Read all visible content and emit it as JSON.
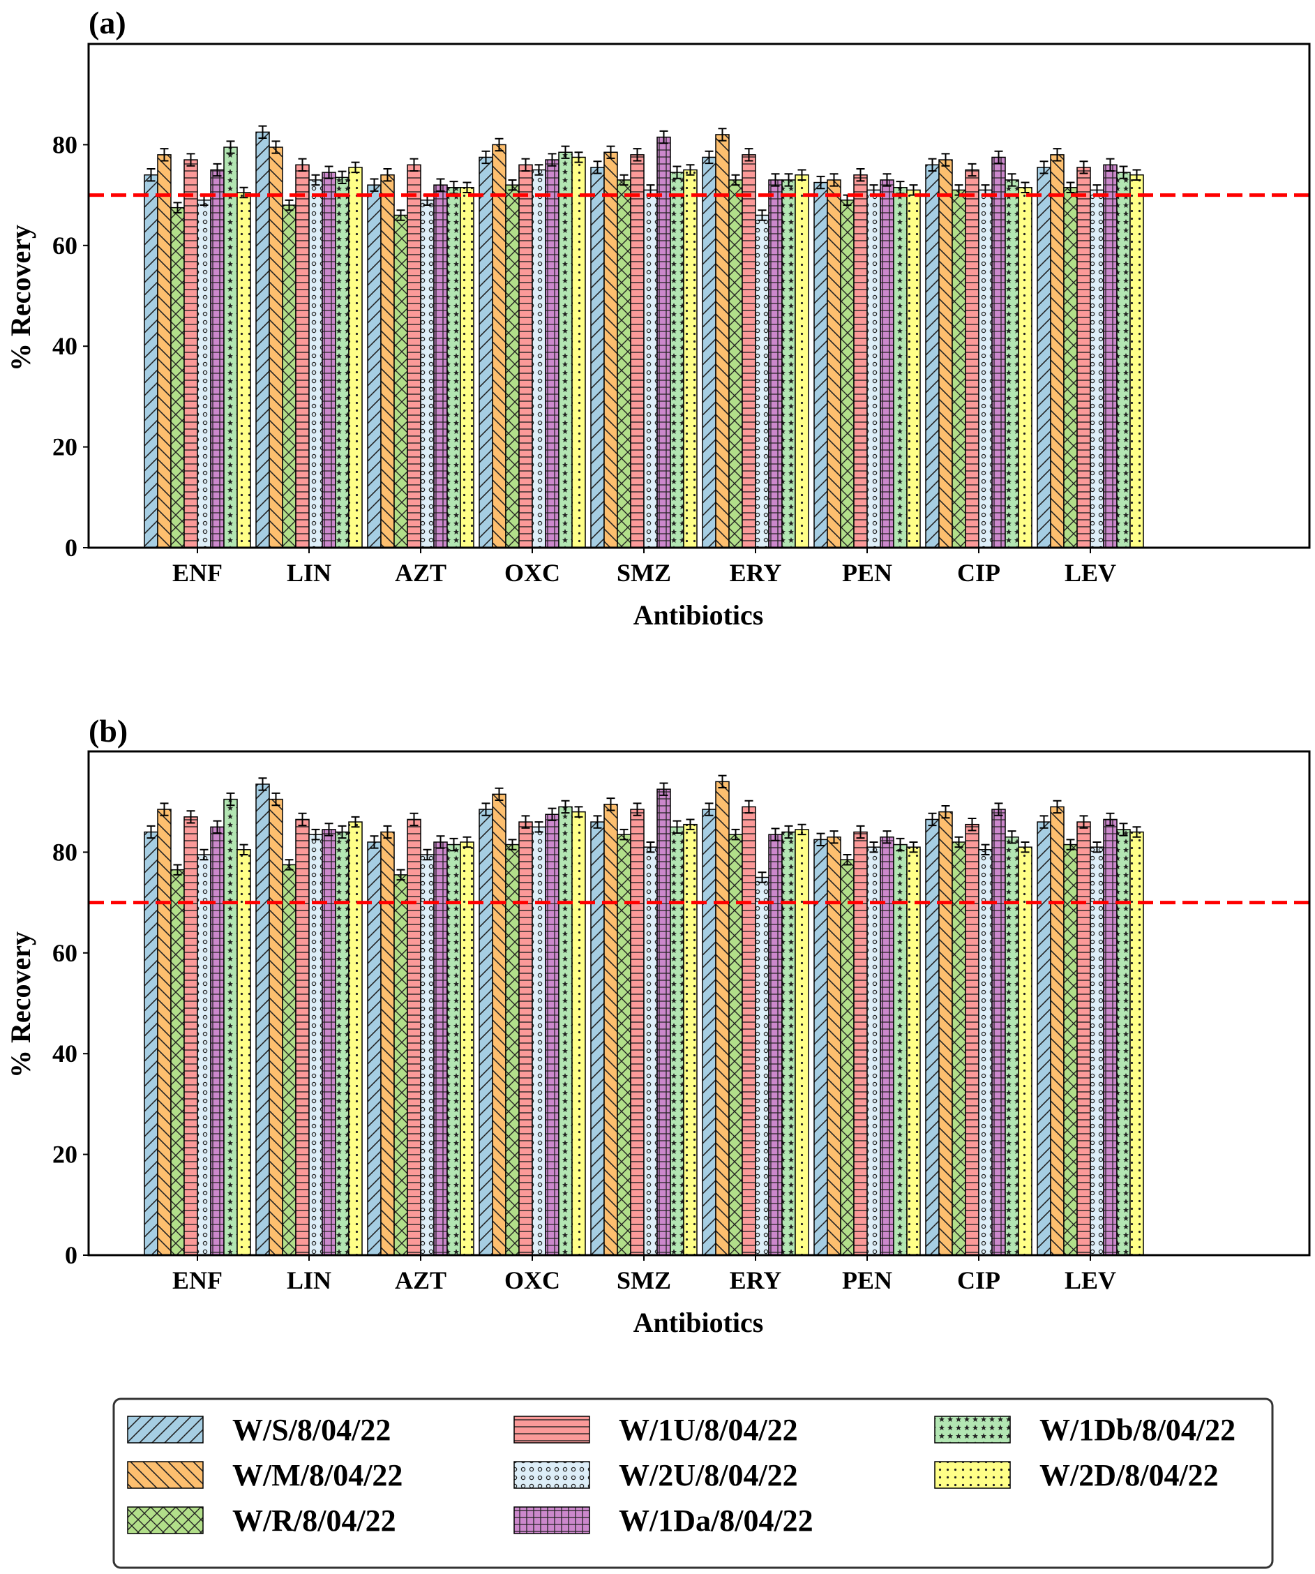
{
  "chart_data": [
    {
      "type": "bar",
      "panel_label": "(a)",
      "xlabel": "Antibiotics",
      "ylabel": "% Recovery",
      "ylim": [
        0,
        100
      ],
      "yticks": [
        0,
        20,
        40,
        60,
        80
      ],
      "grid": false,
      "reference_line": {
        "y": 70,
        "color": "#ff0000",
        "style": "dashed"
      },
      "categories": [
        "ENF",
        "LIN",
        "AZT",
        "OXC",
        "SMZ",
        "ERY",
        "PEN",
        "CIP",
        "LEV"
      ],
      "series": [
        {
          "name": "W/S/8/04/22",
          "values": [
            74,
            82.5,
            72,
            77.5,
            75.5,
            77.5,
            72.5,
            76,
            75.5
          ],
          "errors": [
            1.2,
            1.2,
            1.2,
            1.2,
            1.2,
            1.2,
            1.2,
            1.2,
            1.2
          ]
        },
        {
          "name": "W/M/8/04/22",
          "values": [
            78,
            79.5,
            74,
            80,
            78.5,
            82,
            73,
            77,
            78
          ],
          "errors": [
            1.2,
            1.2,
            1.2,
            1.2,
            1.2,
            1.2,
            1.2,
            1.2,
            1.2
          ]
        },
        {
          "name": "W/R/8/04/22",
          "values": [
            67.5,
            68,
            66,
            72,
            73,
            73,
            69,
            71,
            71.5
          ],
          "errors": [
            1,
            1,
            1,
            1,
            1,
            1,
            1,
            1,
            1
          ]
        },
        {
          "name": "W/1U/8/04/22",
          "values": [
            77,
            76,
            76,
            76,
            78,
            78,
            74,
            75,
            75.5
          ],
          "errors": [
            1.2,
            1.2,
            1.2,
            1.2,
            1.2,
            1.2,
            1.2,
            1.2,
            1.2
          ]
        },
        {
          "name": "W/2U/8/04/22",
          "values": [
            69,
            73,
            69,
            75,
            71,
            66,
            71,
            71,
            71
          ],
          "errors": [
            1,
            1,
            1,
            1,
            1,
            1,
            1,
            1,
            1
          ]
        },
        {
          "name": "W/1Da/8/04/22",
          "values": [
            75,
            74.5,
            72,
            77,
            81.5,
            73,
            73,
            77.5,
            76
          ],
          "errors": [
            1.2,
            1.2,
            1.2,
            1.2,
            1.2,
            1.2,
            1.2,
            1.2,
            1.2
          ]
        },
        {
          "name": "W/1Db/8/04/22",
          "values": [
            79.5,
            73.5,
            71.5,
            78.5,
            74.5,
            73,
            71.5,
            73,
            74.5
          ],
          "errors": [
            1.2,
            1.2,
            1.2,
            1.2,
            1.2,
            1.2,
            1.2,
            1.2,
            1.2
          ]
        },
        {
          "name": "W/2D/8/04/22",
          "values": [
            70.5,
            75.5,
            71.5,
            77.5,
            75,
            74,
            71,
            71.5,
            74
          ],
          "errors": [
            1,
            1,
            1,
            1,
            1,
            1,
            1,
            1,
            1
          ]
        }
      ]
    },
    {
      "type": "bar",
      "panel_label": "(b)",
      "xlabel": "Antibiotics",
      "ylabel": "% Recovery",
      "ylim": [
        0,
        100
      ],
      "yticks": [
        0,
        20,
        40,
        60,
        80
      ],
      "grid": false,
      "reference_line": {
        "y": 70,
        "color": "#ff0000",
        "style": "dashed"
      },
      "categories": [
        "ENF",
        "LIN",
        "AZT",
        "OXC",
        "SMZ",
        "ERY",
        "PEN",
        "CIP",
        "LEV"
      ],
      "series": [
        {
          "name": "W/S/8/04/22",
          "values": [
            84,
            93.5,
            82,
            88.5,
            86,
            88.5,
            82.5,
            86.5,
            86
          ],
          "errors": [
            1.2,
            1.2,
            1.2,
            1.2,
            1.2,
            1.2,
            1.2,
            1.2,
            1.2
          ]
        },
        {
          "name": "W/M/8/04/22",
          "values": [
            88.5,
            90.5,
            84,
            91.5,
            89.5,
            94,
            83,
            88,
            89
          ],
          "errors": [
            1.2,
            1.2,
            1.2,
            1.2,
            1.2,
            1.2,
            1.2,
            1.2,
            1.2
          ]
        },
        {
          "name": "W/R/8/04/22",
          "values": [
            76.5,
            77.5,
            75.5,
            81.5,
            83.5,
            83.5,
            78.5,
            82,
            81.5
          ],
          "errors": [
            1,
            1,
            1,
            1,
            1,
            1,
            1,
            1,
            1
          ]
        },
        {
          "name": "W/1U/8/04/22",
          "values": [
            87,
            86.5,
            86.5,
            86,
            88.5,
            89,
            84,
            85.5,
            86
          ],
          "errors": [
            1.2,
            1.2,
            1.2,
            1.2,
            1.2,
            1.2,
            1.2,
            1.2,
            1.2
          ]
        },
        {
          "name": "W/2U/8/04/22",
          "values": [
            79.5,
            83.5,
            79.5,
            85,
            81,
            75,
            81,
            80.5,
            81
          ],
          "errors": [
            1,
            1,
            1,
            1,
            1,
            1,
            1,
            1,
            1
          ]
        },
        {
          "name": "W/1Da/8/04/22",
          "values": [
            85,
            84.5,
            82,
            87.5,
            92.5,
            83.5,
            83,
            88.5,
            86.5
          ],
          "errors": [
            1.2,
            1.2,
            1.2,
            1.2,
            1.2,
            1.2,
            1.2,
            1.2,
            1.2
          ]
        },
        {
          "name": "W/1Db/8/04/22",
          "values": [
            90.5,
            84,
            81.5,
            89,
            85,
            84,
            81.5,
            83,
            84.5
          ],
          "errors": [
            1.2,
            1.2,
            1.2,
            1.2,
            1.2,
            1.2,
            1.2,
            1.2,
            1.2
          ]
        },
        {
          "name": "W/2D/8/04/22",
          "values": [
            80.5,
            86,
            82,
            88,
            85.5,
            84.5,
            81,
            81,
            84
          ],
          "errors": [
            1,
            1,
            1,
            1,
            1,
            1,
            1,
            1,
            1
          ]
        }
      ]
    }
  ],
  "legend": {
    "placement": "bottom",
    "columns": 3,
    "items": [
      {
        "label": "W/S/8/04/22",
        "color": "#a6cee3",
        "pattern": "slash"
      },
      {
        "label": "W/M/8/04/22",
        "color": "#fdbf6f",
        "pattern": "backslash"
      },
      {
        "label": "W/R/8/04/22",
        "color": "#b2df8a",
        "pattern": "crosshatch"
      },
      {
        "label": "W/1U/8/04/22",
        "color": "#fb9a99",
        "pattern": "horizontal"
      },
      {
        "label": "W/2U/8/04/22",
        "color": "#ddeef8",
        "pattern": "circles"
      },
      {
        "label": "W/1Da/8/04/22",
        "color": "#cc88cc",
        "pattern": "grid"
      },
      {
        "label": "W/1Db/8/04/22",
        "color": "#b3e6b3",
        "pattern": "stars"
      },
      {
        "label": "W/2D/8/04/22",
        "color": "#ffff88",
        "pattern": "dots"
      }
    ]
  }
}
